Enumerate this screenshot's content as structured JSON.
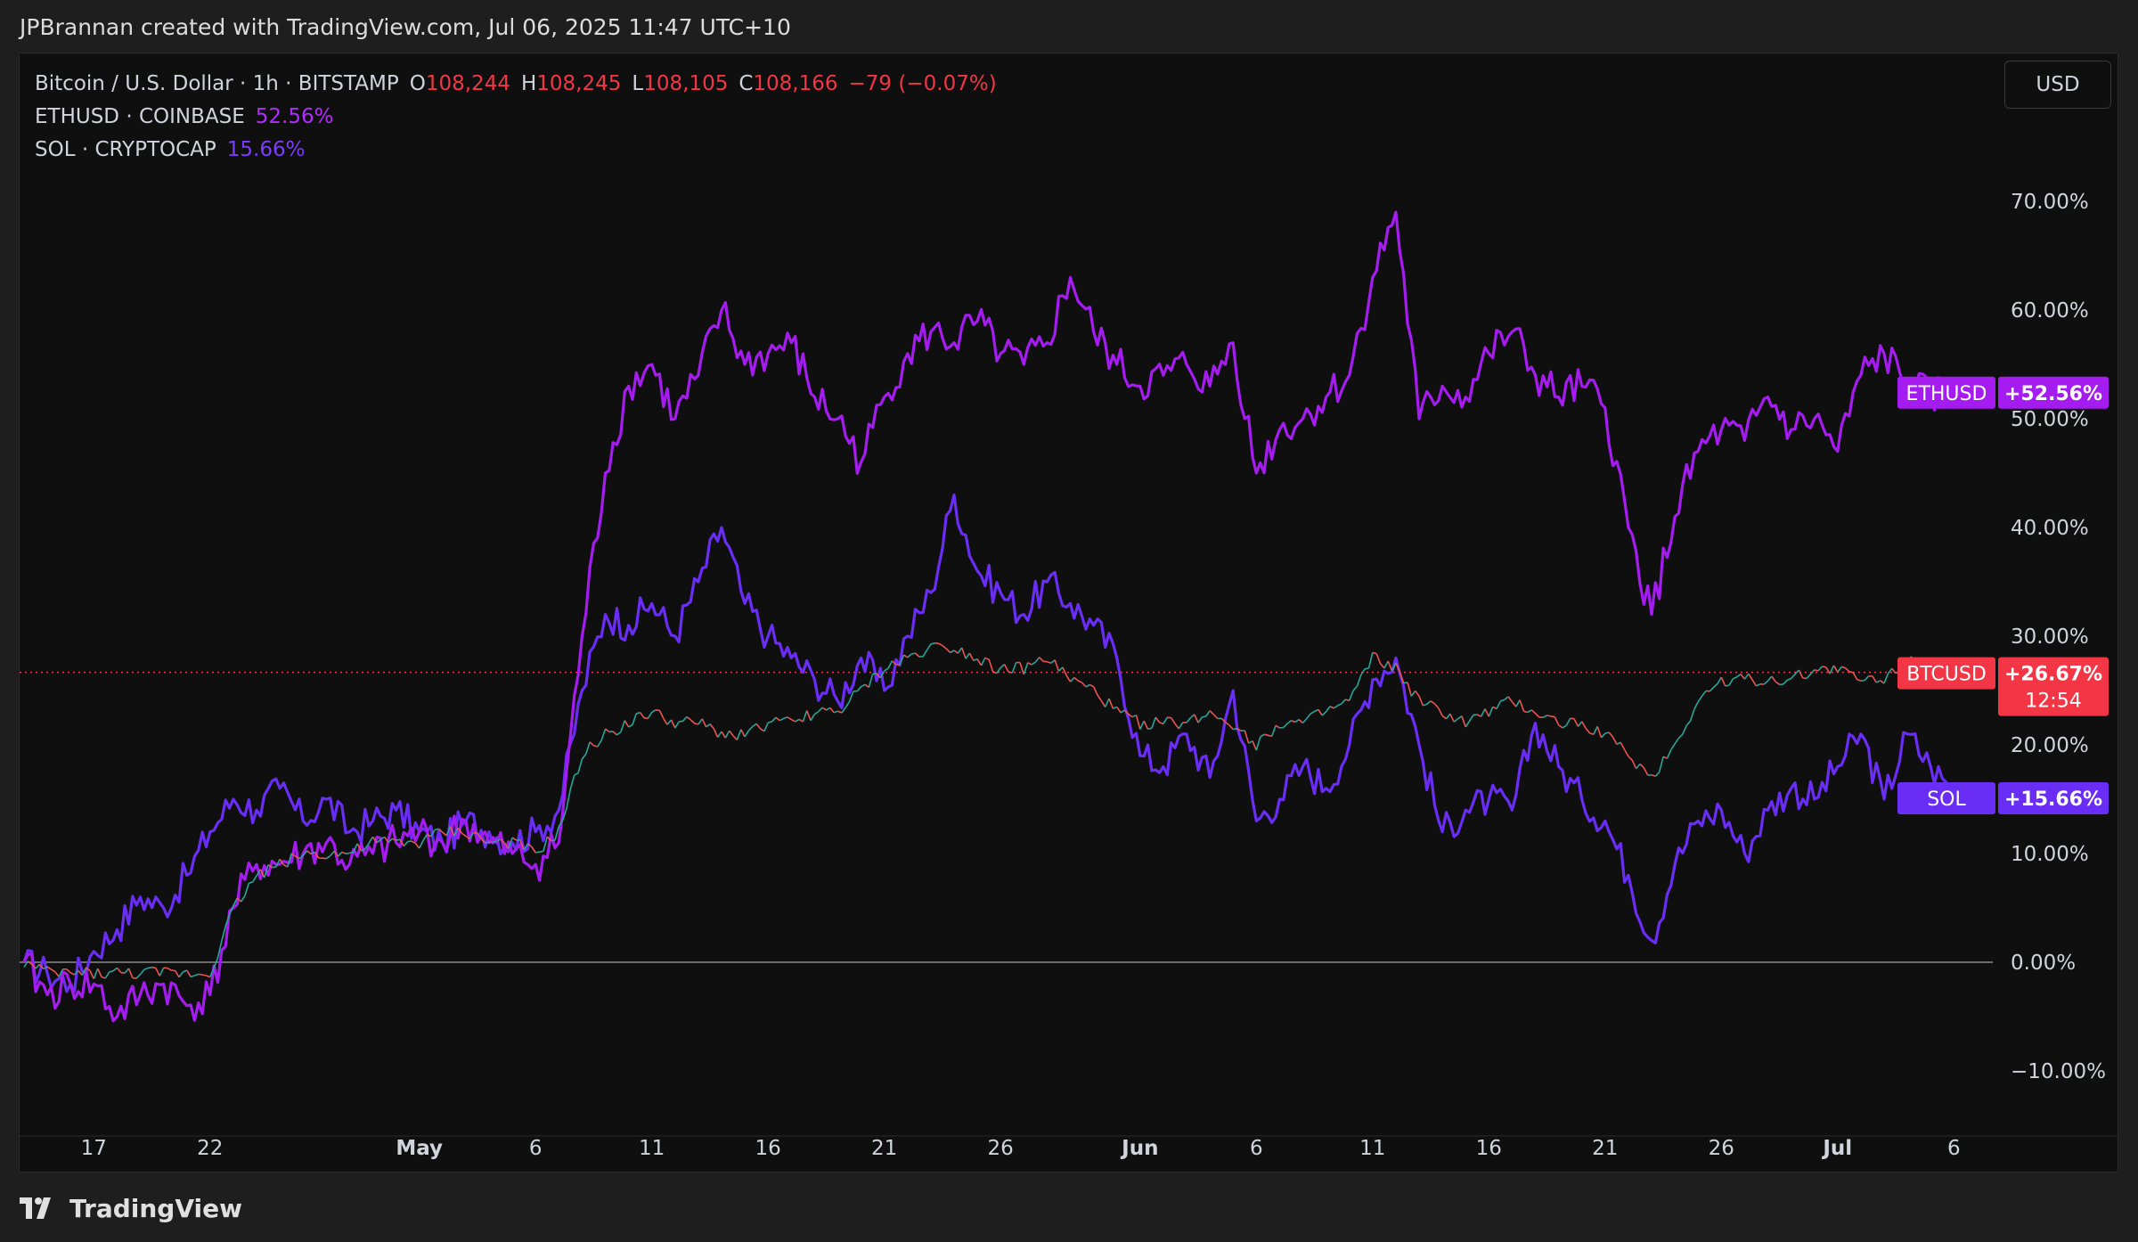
{
  "attribution": "JPBrannan created with TradingView.com, Jul 06, 2025 11:47 UTC+10",
  "currency_button": "USD",
  "footer_brand": "TradingView",
  "legend": {
    "main_symbol": "Bitcoin / U.S. Dollar · 1h · BITSTAMP",
    "open_key": "O",
    "open_val": "108,244",
    "high_key": "H",
    "high_val": "108,245",
    "low_key": "L",
    "low_val": "108,105",
    "close_key": "C",
    "close_val": "108,166",
    "change": "−79 (−0.07%)",
    "eth_symbol": "ETHUSD · COINBASE",
    "eth_val": "52.56%",
    "sol_symbol": "SOL · CRYPTOCAP",
    "sol_val": "15.66%"
  },
  "colors": {
    "eth": "#a51cf0",
    "sol": "#6a2df5",
    "btc_up": "#26a69a",
    "btc_down": "#ef5350",
    "btc_label": "#f23645",
    "background": "#0f0f0f"
  },
  "chart_data": {
    "type": "line",
    "title": "",
    "xlabel": "",
    "ylabel": "",
    "y_unit": "%",
    "ylim": [
      -15,
      76
    ],
    "x_range": [
      "2025-04-14",
      "2025-07-06"
    ],
    "y_ticks": [
      "70.00%",
      "60.00%",
      "50.00%",
      "40.00%",
      "30.00%",
      "20.00%",
      "10.00%",
      "0.00%",
      "−10.00%"
    ],
    "x_ticks": [
      {
        "date": "2025-04-17",
        "label": "17",
        "bold": false
      },
      {
        "date": "2025-04-22",
        "label": "22",
        "bold": false
      },
      {
        "date": "2025-05-01",
        "label": "May",
        "bold": true
      },
      {
        "date": "2025-05-06",
        "label": "6",
        "bold": false
      },
      {
        "date": "2025-05-11",
        "label": "11",
        "bold": false
      },
      {
        "date": "2025-05-16",
        "label": "16",
        "bold": false
      },
      {
        "date": "2025-05-21",
        "label": "21",
        "bold": false
      },
      {
        "date": "2025-05-26",
        "label": "26",
        "bold": false
      },
      {
        "date": "2025-06-01",
        "label": "Jun",
        "bold": true
      },
      {
        "date": "2025-06-06",
        "label": "6",
        "bold": false
      },
      {
        "date": "2025-06-11",
        "label": "11",
        "bold": false
      },
      {
        "date": "2025-06-16",
        "label": "16",
        "bold": false
      },
      {
        "date": "2025-06-21",
        "label": "21",
        "bold": false
      },
      {
        "date": "2025-06-26",
        "label": "26",
        "bold": false
      },
      {
        "date": "2025-07-01",
        "label": "Jul",
        "bold": true
      },
      {
        "date": "2025-07-06",
        "label": "6",
        "bold": false
      }
    ],
    "grid": false,
    "legend_position": "top-left",
    "series": [
      {
        "name": "ETHUSD",
        "tag": "ETHUSD",
        "last_label": "+52.56%",
        "x": [
          "2025-04-14",
          "2025-04-15",
          "2025-04-16",
          "2025-04-17",
          "2025-04-18",
          "2025-04-19",
          "2025-04-20",
          "2025-04-21",
          "2025-04-22",
          "2025-04-23",
          "2025-04-24",
          "2025-04-25",
          "2025-04-26",
          "2025-04-27",
          "2025-04-28",
          "2025-04-29",
          "2025-04-30",
          "2025-05-01",
          "2025-05-02",
          "2025-05-03",
          "2025-05-04",
          "2025-05-05",
          "2025-05-06",
          "2025-05-07",
          "2025-05-08",
          "2025-05-09",
          "2025-05-10",
          "2025-05-11",
          "2025-05-12",
          "2025-05-13",
          "2025-05-14",
          "2025-05-15",
          "2025-05-16",
          "2025-05-17",
          "2025-05-18",
          "2025-05-19",
          "2025-05-20",
          "2025-05-21",
          "2025-05-22",
          "2025-05-23",
          "2025-05-24",
          "2025-05-25",
          "2025-05-26",
          "2025-05-27",
          "2025-05-28",
          "2025-05-29",
          "2025-05-30",
          "2025-05-31",
          "2025-06-01",
          "2025-06-02",
          "2025-06-03",
          "2025-06-04",
          "2025-06-05",
          "2025-06-06",
          "2025-06-07",
          "2025-06-08",
          "2025-06-09",
          "2025-06-10",
          "2025-06-11",
          "2025-06-12",
          "2025-06-13",
          "2025-06-14",
          "2025-06-15",
          "2025-06-16",
          "2025-06-17",
          "2025-06-18",
          "2025-06-19",
          "2025-06-20",
          "2025-06-21",
          "2025-06-22",
          "2025-06-23",
          "2025-06-24",
          "2025-06-25",
          "2025-06-26",
          "2025-06-27",
          "2025-06-28",
          "2025-06-29",
          "2025-06-30",
          "2025-07-01",
          "2025-07-02",
          "2025-07-03",
          "2025-07-04",
          "2025-07-05",
          "2025-07-06"
        ],
        "values": [
          0,
          -3,
          -2,
          -2,
          -5,
          -3,
          -2,
          -4,
          -3,
          5,
          9,
          9,
          10,
          11,
          9,
          10,
          11,
          12,
          11,
          13,
          11,
          10,
          9,
          11,
          30,
          45,
          53,
          55,
          50,
          54,
          60,
          55,
          56,
          57,
          52,
          50,
          46,
          52,
          56,
          58,
          57,
          59,
          56,
          55,
          57,
          63,
          58,
          55,
          53,
          54,
          55,
          53,
          57,
          45,
          49,
          50,
          52,
          54,
          63,
          69,
          50,
          53,
          52,
          56,
          58,
          54,
          52,
          53,
          51,
          40,
          32,
          41,
          47,
          49,
          48,
          52,
          49,
          50,
          47,
          54,
          56,
          53,
          52,
          52.56
        ]
      },
      {
        "name": "SOL",
        "tag": "SOL",
        "last_label": "+15.66%",
        "x": [
          "2025-04-14",
          "2025-04-15",
          "2025-04-16",
          "2025-04-17",
          "2025-04-18",
          "2025-04-19",
          "2025-04-20",
          "2025-04-21",
          "2025-04-22",
          "2025-04-23",
          "2025-04-24",
          "2025-04-25",
          "2025-04-26",
          "2025-04-27",
          "2025-04-28",
          "2025-04-29",
          "2025-04-30",
          "2025-05-01",
          "2025-05-02",
          "2025-05-03",
          "2025-05-04",
          "2025-05-05",
          "2025-05-06",
          "2025-05-07",
          "2025-05-08",
          "2025-05-09",
          "2025-05-10",
          "2025-05-11",
          "2025-05-12",
          "2025-05-13",
          "2025-05-14",
          "2025-05-15",
          "2025-05-16",
          "2025-05-17",
          "2025-05-18",
          "2025-05-19",
          "2025-05-20",
          "2025-05-21",
          "2025-05-22",
          "2025-05-23",
          "2025-05-24",
          "2025-05-25",
          "2025-05-26",
          "2025-05-27",
          "2025-05-28",
          "2025-05-29",
          "2025-05-30",
          "2025-05-31",
          "2025-06-01",
          "2025-06-02",
          "2025-06-03",
          "2025-06-04",
          "2025-06-05",
          "2025-06-06",
          "2025-06-07",
          "2025-06-08",
          "2025-06-09",
          "2025-06-10",
          "2025-06-11",
          "2025-06-12",
          "2025-06-13",
          "2025-06-14",
          "2025-06-15",
          "2025-06-16",
          "2025-06-17",
          "2025-06-18",
          "2025-06-19",
          "2025-06-20",
          "2025-06-21",
          "2025-06-22",
          "2025-06-23",
          "2025-06-24",
          "2025-06-25",
          "2025-06-26",
          "2025-06-27",
          "2025-06-28",
          "2025-06-29",
          "2025-06-30",
          "2025-07-01",
          "2025-07-02",
          "2025-07-03",
          "2025-07-04",
          "2025-07-05",
          "2025-07-06"
        ],
        "values": [
          0,
          -1,
          -2,
          1,
          3,
          6,
          5,
          8,
          12,
          15,
          14,
          16,
          13,
          15,
          12,
          13,
          14,
          12,
          11,
          13,
          12,
          11,
          12,
          14,
          25,
          32,
          31,
          33,
          30,
          35,
          40,
          33,
          30,
          28,
          26,
          24,
          28,
          25,
          30,
          34,
          43,
          36,
          34,
          32,
          35,
          33,
          31,
          28,
          19,
          18,
          21,
          17,
          25,
          13,
          15,
          18,
          16,
          20,
          26,
          28,
          20,
          12,
          14,
          15,
          14,
          22,
          18,
          15,
          13,
          8,
          2,
          9,
          13,
          14,
          10,
          14,
          16,
          15,
          18,
          21,
          15,
          21,
          18,
          15.66
        ]
      },
      {
        "name": "BTCUSD",
        "tag": "BTCUSD",
        "last_label": "+26.67%",
        "countdown": "12:54",
        "x": [
          "2025-04-14",
          "2025-04-15",
          "2025-04-16",
          "2025-04-17",
          "2025-04-18",
          "2025-04-19",
          "2025-04-20",
          "2025-04-21",
          "2025-04-22",
          "2025-04-23",
          "2025-04-24",
          "2025-04-25",
          "2025-04-26",
          "2025-04-27",
          "2025-04-28",
          "2025-04-29",
          "2025-04-30",
          "2025-05-01",
          "2025-05-02",
          "2025-05-03",
          "2025-05-04",
          "2025-05-05",
          "2025-05-06",
          "2025-05-07",
          "2025-05-08",
          "2025-05-09",
          "2025-05-10",
          "2025-05-11",
          "2025-05-12",
          "2025-05-13",
          "2025-05-14",
          "2025-05-15",
          "2025-05-16",
          "2025-05-17",
          "2025-05-18",
          "2025-05-19",
          "2025-05-20",
          "2025-05-21",
          "2025-05-22",
          "2025-05-23",
          "2025-05-24",
          "2025-05-25",
          "2025-05-26",
          "2025-05-27",
          "2025-05-28",
          "2025-05-29",
          "2025-05-30",
          "2025-05-31",
          "2025-06-01",
          "2025-06-02",
          "2025-06-03",
          "2025-06-04",
          "2025-06-05",
          "2025-06-06",
          "2025-06-07",
          "2025-06-08",
          "2025-06-09",
          "2025-06-10",
          "2025-06-11",
          "2025-06-12",
          "2025-06-13",
          "2025-06-14",
          "2025-06-15",
          "2025-06-16",
          "2025-06-17",
          "2025-06-18",
          "2025-06-19",
          "2025-06-20",
          "2025-06-21",
          "2025-06-22",
          "2025-06-23",
          "2025-06-24",
          "2025-06-25",
          "2025-06-26",
          "2025-06-27",
          "2025-06-28",
          "2025-06-29",
          "2025-06-30",
          "2025-07-01",
          "2025-07-02",
          "2025-07-03",
          "2025-07-04",
          "2025-07-05",
          "2025-07-06"
        ],
        "values": [
          0,
          -1,
          -1,
          -1,
          -1,
          -1,
          -1,
          -1,
          -1,
          5,
          8,
          9,
          10,
          10,
          10,
          11,
          11,
          11,
          12,
          12,
          11,
          11,
          10,
          12,
          19,
          21,
          22,
          23,
          22,
          22,
          21,
          21,
          22,
          22,
          23,
          23,
          25,
          27,
          28,
          29,
          29,
          28,
          27,
          27,
          28,
          26,
          25,
          23,
          22,
          22,
          22,
          23,
          22,
          20,
          22,
          22,
          23,
          24,
          28,
          27,
          24,
          23,
          22,
          23,
          24,
          23,
          22,
          22,
          21,
          19,
          17,
          20,
          24,
          26,
          26,
          26,
          26,
          27,
          27,
          26,
          26,
          28,
          27,
          26.67
        ]
      }
    ],
    "reference_lines": [
      {
        "value": 0,
        "style": "solid"
      },
      {
        "value": 26.67,
        "style": "dotted"
      }
    ]
  }
}
